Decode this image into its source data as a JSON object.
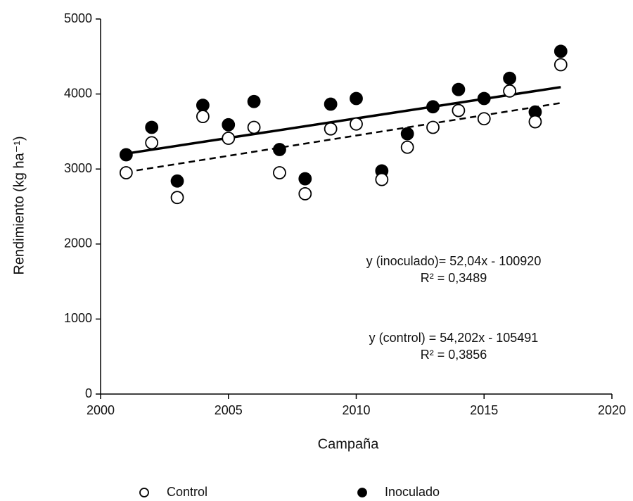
{
  "chart_data": {
    "type": "scatter",
    "x_label": "Campaña",
    "y_label": "Rendimiento (kg ha⁻¹)",
    "xlim": [
      2000,
      2020
    ],
    "xticks": [
      2000,
      2005,
      2010,
      2015,
      2020
    ],
    "ylim": [
      0,
      5000
    ],
    "yticks": [
      0,
      1000,
      2000,
      3000,
      4000,
      5000
    ],
    "x": [
      2001,
      2002,
      2003,
      2004,
      2005,
      2006,
      2007,
      2008,
      2009,
      2010,
      2011,
      2012,
      2013,
      2014,
      2015,
      2016,
      2017,
      2018
    ],
    "series": [
      {
        "name": "Inoculado",
        "color": "#000000",
        "filled": true,
        "trendline": "solid",
        "values": [
          3190,
          3555,
          2840,
          3850,
          3590,
          3900,
          3260,
          2870,
          3865,
          3940,
          2975,
          3470,
          3830,
          4060,
          3940,
          4210,
          3760,
          4570
        ]
      },
      {
        "name": "Control",
        "color": "#000000",
        "filled": false,
        "trendline": "dashed",
        "values": [
          2950,
          3350,
          2620,
          3700,
          3410,
          3555,
          2950,
          2670,
          3535,
          3600,
          2860,
          3290,
          3555,
          3780,
          3670,
          4040,
          3630,
          4390
        ]
      }
    ],
    "annotations": [
      "y (inoculado)= 52,04x - 100920",
      "R² = 0,3489",
      "y (control) = 54,202x - 105491",
      "R² = 0,3856"
    ],
    "legend": "bottom"
  }
}
